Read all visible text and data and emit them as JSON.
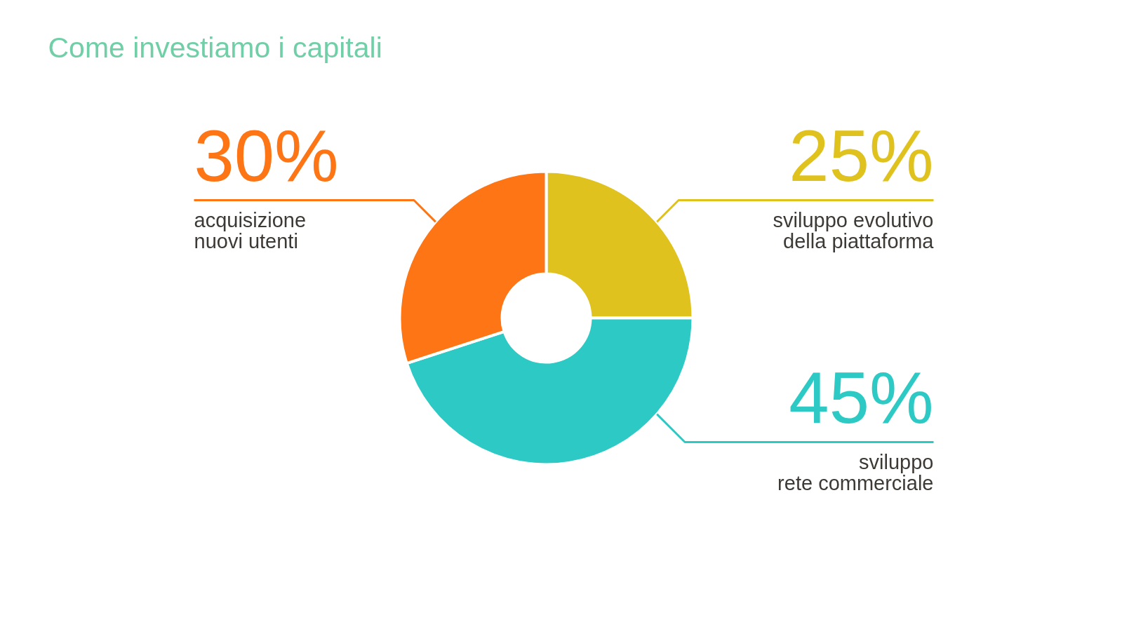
{
  "chart_data": {
    "type": "donut",
    "title": "Come investiamo i capitali",
    "categories": [
      "sviluppo evolutivo\ndella piattaforma",
      "sviluppo\nrete commerciale",
      "acquisizione\nnuovi utenti"
    ],
    "values": [
      25,
      45,
      30
    ],
    "colors": [
      "#e0c21f",
      "#2dcac5",
      "#fd7514"
    ],
    "value_labels": [
      "25%",
      "45%",
      "30%"
    ]
  }
}
